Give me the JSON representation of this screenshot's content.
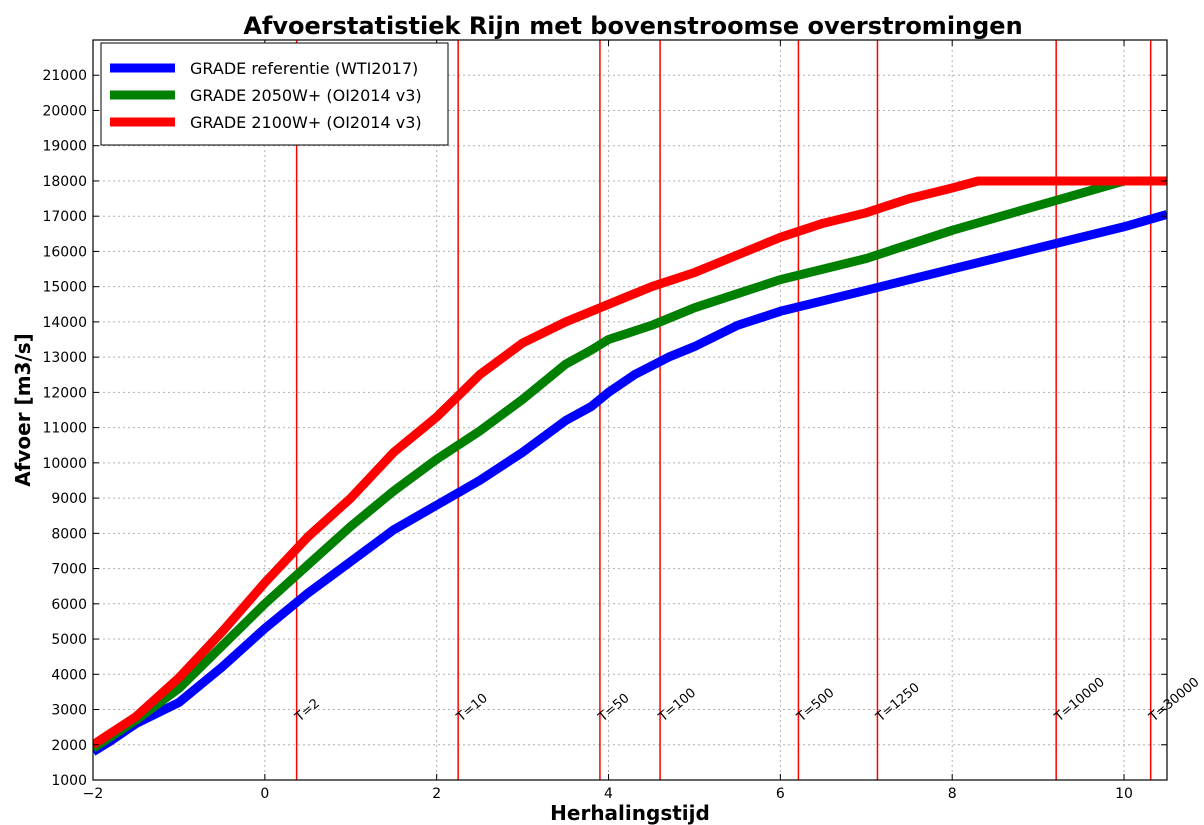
{
  "chart_data": {
    "type": "line",
    "title": "Afvoerstatistiek Rijn met bovenstroomse overstromingen",
    "xlabel": "Herhalingstijd",
    "ylabel": "Afvoer [m3/s]",
    "xlim": [
      -2,
      10.5
    ],
    "ylim": [
      1000,
      22000
    ],
    "xticks": [
      -2,
      0,
      2,
      4,
      6,
      8,
      10
    ],
    "yticks": [
      1000,
      2000,
      3000,
      4000,
      5000,
      6000,
      7000,
      8000,
      9000,
      10000,
      11000,
      12000,
      13000,
      14000,
      15000,
      16000,
      17000,
      18000,
      19000,
      20000,
      21000
    ],
    "grid": true,
    "legend_position": "upper-left",
    "series": [
      {
        "name": "GRADE referentie (WTI2017)",
        "color": "#0000ff",
        "x": [
          -2,
          -1.8,
          -1.5,
          -1,
          -0.5,
          0,
          0.5,
          1,
          1.5,
          2,
          2.5,
          3,
          3.5,
          3.8,
          4,
          4.3,
          4.7,
          5,
          5.5,
          6,
          6.5,
          7,
          8,
          9,
          10,
          10.5
        ],
        "y": [
          1800,
          2100,
          2600,
          3200,
          4200,
          5300,
          6300,
          7200,
          8100,
          8800,
          9500,
          10300,
          11200,
          11600,
          12000,
          12500,
          13000,
          13300,
          13900,
          14300,
          14600,
          14900,
          15500,
          16100,
          16700,
          17050
        ]
      },
      {
        "name": "GRADE 2050W+ (OI2014 v3)",
        "color": "#008000",
        "x": [
          -2,
          -1.5,
          -1,
          -0.5,
          0,
          0.5,
          1,
          1.5,
          2,
          2.5,
          3,
          3.5,
          3.8,
          4,
          4.5,
          5,
          5.5,
          6,
          7,
          8,
          9,
          10,
          10.2,
          10.5
        ],
        "y": [
          1900,
          2700,
          3600,
          4800,
          6000,
          7100,
          8200,
          9200,
          10100,
          10900,
          11800,
          12800,
          13200,
          13500,
          13900,
          14400,
          14800,
          15200,
          15800,
          16600,
          17300,
          18000,
          18000,
          18000
        ]
      },
      {
        "name": "GRADE 2100W+ (OI2014 v3)",
        "color": "#ff0000",
        "x": [
          -2,
          -1.5,
          -1,
          -0.5,
          0,
          0.5,
          1,
          1.5,
          2,
          2.5,
          3,
          3.5,
          4,
          4.5,
          5,
          5.5,
          6,
          6.5,
          7,
          7.5,
          8,
          8.3,
          9,
          10,
          10.5
        ],
        "y": [
          2000,
          2800,
          3900,
          5200,
          6600,
          7900,
          9000,
          10300,
          11300,
          12500,
          13400,
          14000,
          14500,
          15000,
          15400,
          15900,
          16400,
          16800,
          17100,
          17500,
          17800,
          18000,
          18000,
          18000,
          18000
        ]
      }
    ],
    "vlines": [
      {
        "x": 0.37,
        "label": "T=2"
      },
      {
        "x": 2.25,
        "label": "T=10"
      },
      {
        "x": 3.9,
        "label": "T=50"
      },
      {
        "x": 4.6,
        "label": "T=100"
      },
      {
        "x": 6.21,
        "label": "T=500"
      },
      {
        "x": 7.13,
        "label": "T=1250"
      },
      {
        "x": 9.21,
        "label": "T=10000"
      },
      {
        "x": 10.31,
        "label": "T=30000"
      }
    ]
  }
}
